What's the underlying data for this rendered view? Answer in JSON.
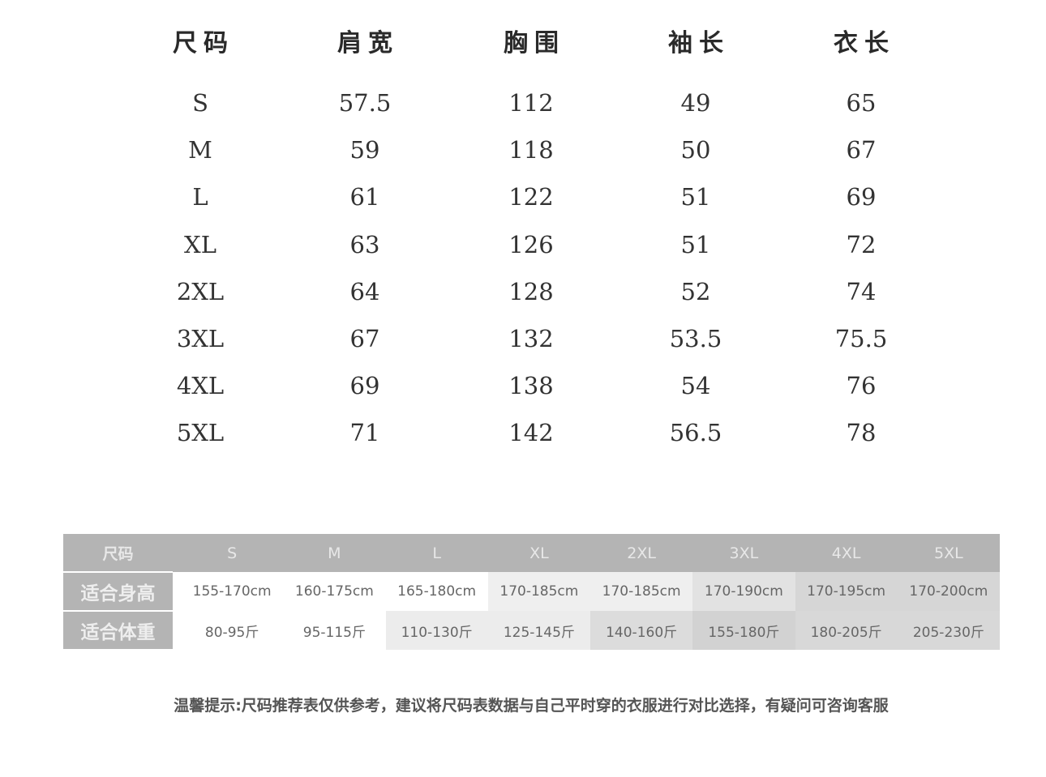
{
  "main_table": {
    "headers": [
      "尺码",
      "肩宽",
      "胸围",
      "袖长",
      "衣长"
    ],
    "rows": [
      [
        "S",
        "57.5",
        "112",
        "49",
        "65"
      ],
      [
        "M",
        "59",
        "118",
        "50",
        "67"
      ],
      [
        "L",
        "61",
        "122",
        "51",
        "69"
      ],
      [
        "XL",
        "63",
        "126",
        "51",
        "72"
      ],
      [
        "2XL",
        "64",
        "128",
        "52",
        "74"
      ],
      [
        "3XL",
        "67",
        "132",
        "53.5",
        "75.5"
      ],
      [
        "4XL",
        "69",
        "138",
        "54",
        "76"
      ],
      [
        "5XL",
        "71",
        "142",
        "56.5",
        "78"
      ]
    ]
  },
  "recommend_table": {
    "header_label": "尺码",
    "sizes": [
      "S",
      "M",
      "L",
      "XL",
      "2XL",
      "3XL",
      "4XL",
      "5XL"
    ],
    "height_label": "适合身高",
    "heights": [
      "155-170cm",
      "160-175cm",
      "165-180cm",
      "170-185cm",
      "170-185cm",
      "170-190cm",
      "170-195cm",
      "170-200cm"
    ],
    "weight_label": "适合体重",
    "weights": [
      "80-95斤",
      "95-115斤",
      "110-130斤",
      "125-145斤",
      "140-160斤",
      "155-180斤",
      "180-205斤",
      "205-230斤"
    ]
  },
  "note": "温馨提示:尺码推荐表仅供参考，建议将尺码表数据与自己平时穿的衣服进行对比选择，有疑问可咨询客服"
}
